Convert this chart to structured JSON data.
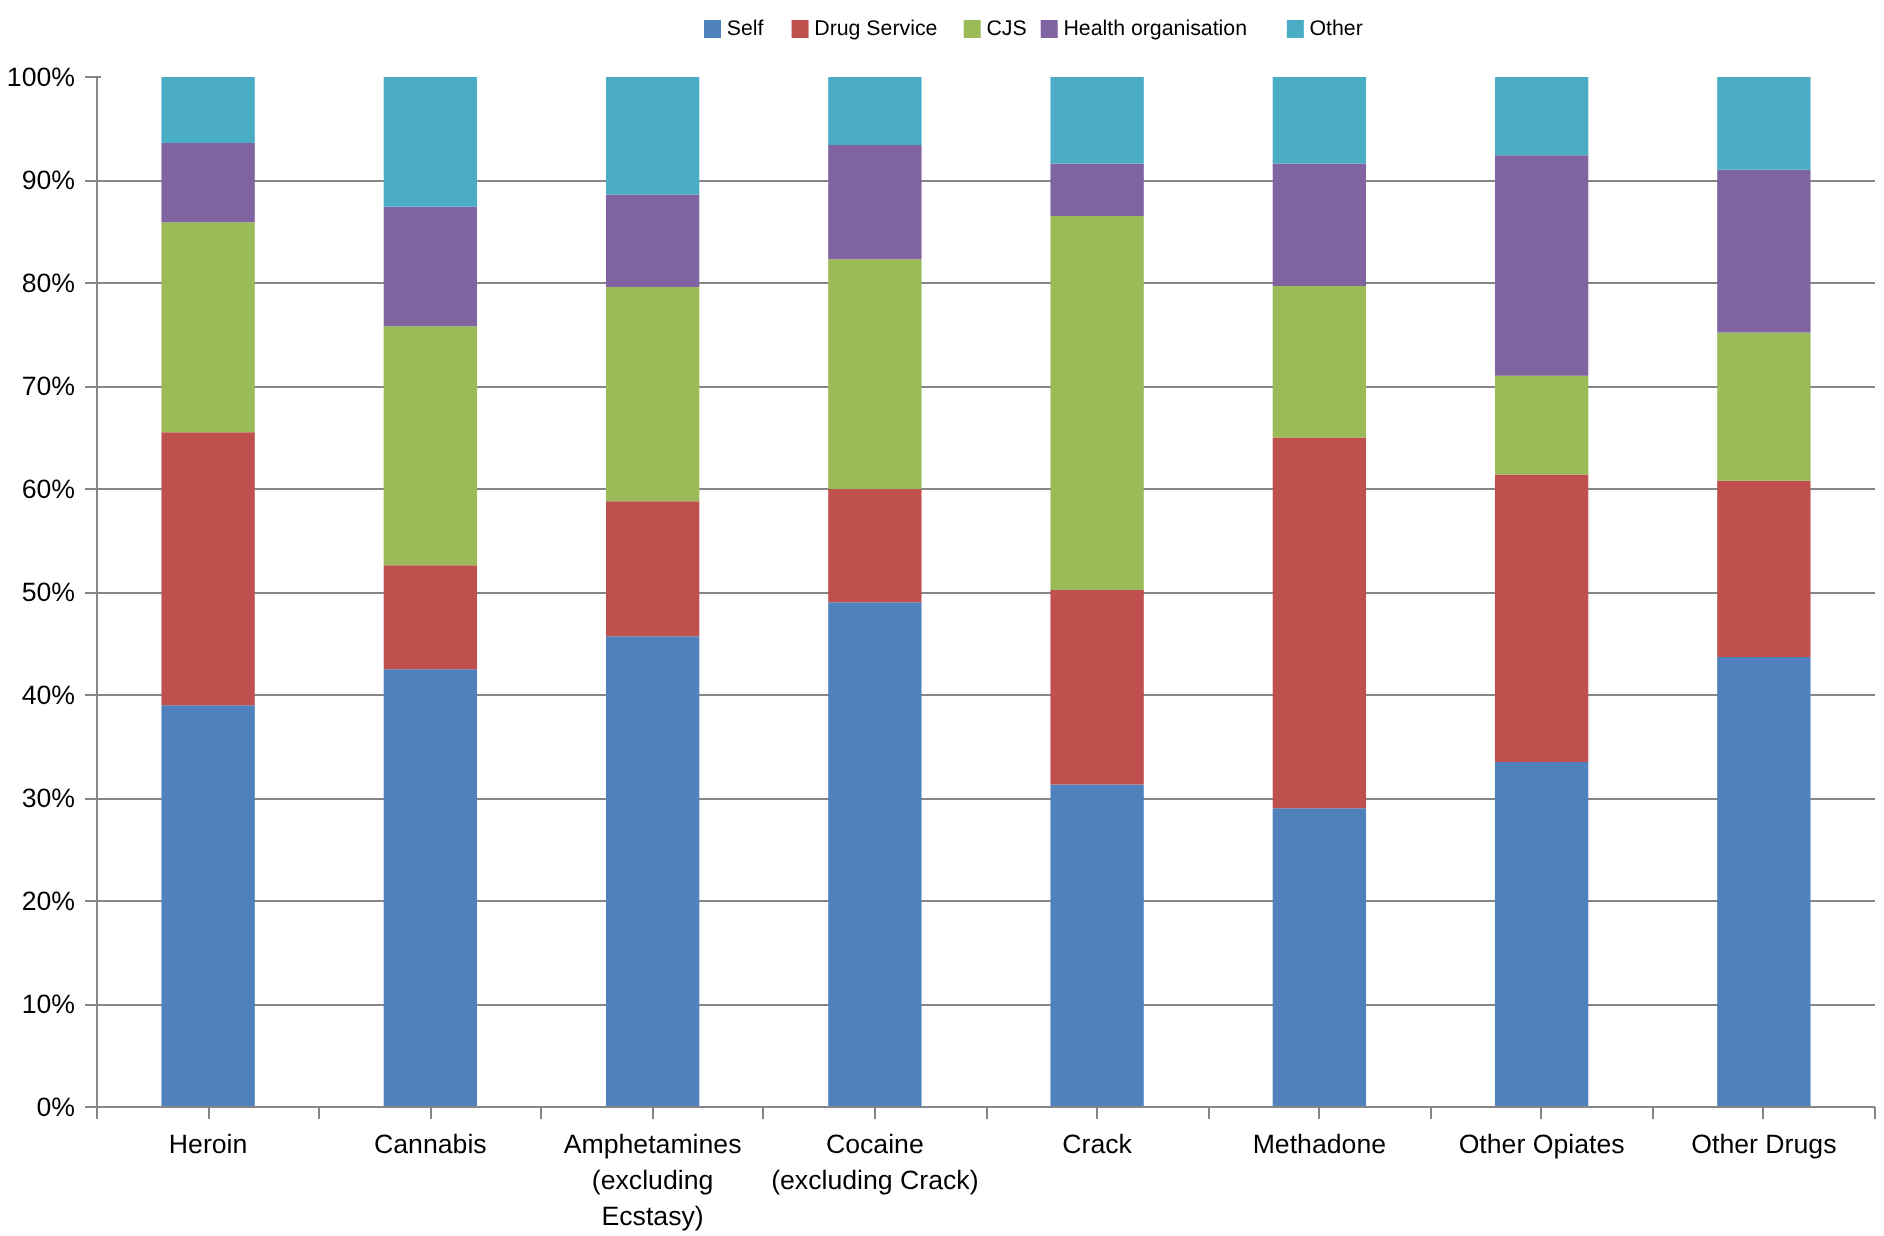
{
  "chart_data": {
    "type": "bar",
    "stacked": true,
    "categories": [
      "Heroin",
      "Cannabis",
      "Amphetamines\n(excluding\nEcstasy)",
      "Cocaine\n(excluding Crack)",
      "Crack",
      "Methadone",
      "Other Opiates",
      "Other Drugs"
    ],
    "series": [
      {
        "name": "Self",
        "color": "#4f81bd",
        "values": [
          39.0,
          42.5,
          45.7,
          49.0,
          31.3,
          29.0,
          33.5,
          43.7
        ]
      },
      {
        "name": "Drug Service",
        "color": "#c0504d",
        "values": [
          26.5,
          10.1,
          13.1,
          11.0,
          18.9,
          36.0,
          27.9,
          17.1
        ]
      },
      {
        "name": "CJS",
        "color": "#9bbb59",
        "values": [
          20.4,
          23.2,
          20.8,
          22.3,
          36.3,
          14.7,
          9.6,
          14.4
        ]
      },
      {
        "name": "Health organisation",
        "color": "#8064a2",
        "values": [
          7.7,
          11.6,
          9.0,
          11.1,
          5.1,
          11.9,
          21.4,
          15.8
        ]
      },
      {
        "name": "Other",
        "color": "#4bacc6",
        "values": [
          6.4,
          12.6,
          11.4,
          6.6,
          8.4,
          8.4,
          7.6,
          9.0
        ]
      }
    ],
    "ylim": [
      0,
      100
    ],
    "yticks": [
      {
        "value": 0,
        "label": "0%"
      },
      {
        "value": 10,
        "label": "10%"
      },
      {
        "value": 20,
        "label": "20%"
      },
      {
        "value": 30,
        "label": "30%"
      },
      {
        "value": 40,
        "label": "40%"
      },
      {
        "value": 50,
        "label": "50%"
      },
      {
        "value": 60,
        "label": "60%"
      },
      {
        "value": 70,
        "label": "70%"
      },
      {
        "value": 80,
        "label": "80%"
      },
      {
        "value": 90,
        "label": "90%"
      },
      {
        "value": 100,
        "label": "100%"
      }
    ],
    "grid": "y",
    "legend": "top"
  }
}
